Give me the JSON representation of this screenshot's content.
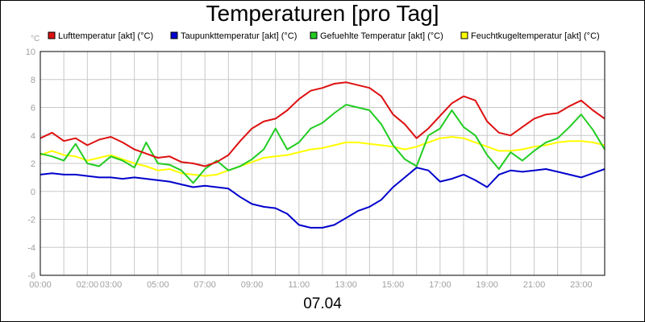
{
  "chart_data": {
    "type": "line",
    "title": "Temperaturen [pro Tag]",
    "date_label": "07.04",
    "y_unit": "°C",
    "ylim": [
      -6,
      10
    ],
    "y_ticks": [
      "-6",
      "-4",
      "-2",
      "0",
      "2",
      "4",
      "6",
      "8",
      "10"
    ],
    "y_tick_values": [
      -6,
      -4,
      -2,
      0,
      2,
      4,
      6,
      8,
      10
    ],
    "x_range_hours": [
      0,
      24
    ],
    "x_ticks": [
      {
        "label": "00:00",
        "hour": 0
      },
      {
        "label": "02:00",
        "hour": 2
      },
      {
        "label": "03:00",
        "hour": 3
      },
      {
        "label": "05:00",
        "hour": 5
      },
      {
        "label": "07:00",
        "hour": 7
      },
      {
        "label": "09:00",
        "hour": 9
      },
      {
        "label": "11:00",
        "hour": 11
      },
      {
        "label": "13:00",
        "hour": 13
      },
      {
        "label": "15:00",
        "hour": 15
      },
      {
        "label": "17:00",
        "hour": 17
      },
      {
        "label": "19:00",
        "hour": 19
      },
      {
        "label": "21:00",
        "hour": 21
      },
      {
        "label": "23:00",
        "hour": 23
      }
    ],
    "grid": true,
    "legend_position": "top",
    "series": [
      {
        "name": "Lufttemperatur [akt] (°C)",
        "color": "#dd1111",
        "x": [
          0,
          0.5,
          1,
          1.5,
          2,
          2.5,
          3,
          3.5,
          4,
          4.5,
          5,
          5.5,
          6,
          6.5,
          7,
          7.5,
          8,
          8.5,
          9,
          9.5,
          10,
          10.5,
          11,
          11.5,
          12,
          12.5,
          13,
          13.5,
          14,
          14.5,
          15,
          15.5,
          16,
          16.5,
          17,
          17.5,
          18,
          18.5,
          19,
          19.5,
          20,
          20.5,
          21,
          21.5,
          22,
          22.5,
          23,
          23.5,
          24
        ],
        "values": [
          3.8,
          4.2,
          3.6,
          3.8,
          3.3,
          3.7,
          3.9,
          3.5,
          3.0,
          2.7,
          2.4,
          2.5,
          2.1,
          2.0,
          1.8,
          2.1,
          2.6,
          3.6,
          4.5,
          5.0,
          5.2,
          5.8,
          6.6,
          7.2,
          7.4,
          7.7,
          7.8,
          7.6,
          7.4,
          6.8,
          5.5,
          4.8,
          3.8,
          4.5,
          5.4,
          6.3,
          6.8,
          6.5,
          5.0,
          4.2,
          4.0,
          4.6,
          5.2,
          5.5,
          5.6,
          6.1,
          6.5,
          5.8,
          5.2
        ]
      },
      {
        "name": "Taupunkttemperatur [akt] (°C)",
        "color": "#0000cc",
        "x": [
          0,
          0.5,
          1,
          1.5,
          2,
          2.5,
          3,
          3.5,
          4,
          4.5,
          5,
          5.5,
          6,
          6.5,
          7,
          7.5,
          8,
          8.5,
          9,
          9.5,
          10,
          10.5,
          11,
          11.5,
          12,
          12.5,
          13,
          13.5,
          14,
          14.5,
          15,
          15.5,
          16,
          16.5,
          17,
          17.5,
          18,
          18.5,
          19,
          19.5,
          20,
          20.5,
          21,
          21.5,
          22,
          22.5,
          23,
          23.5,
          24
        ],
        "values": [
          1.2,
          1.3,
          1.2,
          1.2,
          1.1,
          1.0,
          1.0,
          0.9,
          1.0,
          0.9,
          0.8,
          0.7,
          0.5,
          0.3,
          0.4,
          0.3,
          0.2,
          -0.4,
          -0.9,
          -1.1,
          -1.2,
          -1.6,
          -2.4,
          -2.6,
          -2.6,
          -2.4,
          -1.9,
          -1.4,
          -1.1,
          -0.6,
          0.3,
          1.0,
          1.7,
          1.5,
          0.7,
          0.9,
          1.2,
          0.8,
          0.3,
          1.2,
          1.5,
          1.4,
          1.5,
          1.6,
          1.4,
          1.2,
          1.0,
          1.3,
          1.6
        ]
      },
      {
        "name": "Gefuehlte Temperatur [akt] (°C)",
        "color": "#22cc22",
        "x": [
          0,
          0.5,
          1,
          1.5,
          2,
          2.5,
          3,
          3.5,
          4,
          4.5,
          5,
          5.5,
          6,
          6.5,
          7,
          7.5,
          8,
          8.5,
          9,
          9.5,
          10,
          10.5,
          11,
          11.5,
          12,
          12.5,
          13,
          13.5,
          14,
          14.5,
          15,
          15.5,
          16,
          16.5,
          17,
          17.5,
          18,
          18.5,
          19,
          19.5,
          20,
          20.5,
          21,
          21.5,
          22,
          22.5,
          23,
          23.5,
          24
        ],
        "values": [
          2.7,
          2.5,
          2.2,
          3.4,
          2.0,
          1.8,
          2.5,
          2.2,
          1.7,
          3.5,
          2.0,
          1.9,
          1.5,
          0.6,
          1.6,
          2.2,
          1.5,
          1.8,
          2.3,
          3.0,
          4.5,
          3.0,
          3.5,
          4.5,
          4.9,
          5.6,
          6.2,
          6.0,
          5.8,
          4.8,
          3.3,
          2.3,
          1.8,
          4.0,
          4.5,
          5.8,
          4.6,
          4.0,
          2.6,
          1.6,
          2.8,
          2.2,
          2.9,
          3.5,
          3.8,
          4.6,
          5.5,
          4.4,
          3.0
        ]
      },
      {
        "name": "Feuchtkugeltemperatur [akt] (°C)",
        "color": "#ffff00",
        "x": [
          0,
          0.5,
          1,
          1.5,
          2,
          2.5,
          3,
          3.5,
          4,
          4.5,
          5,
          5.5,
          6,
          6.5,
          7,
          7.5,
          8,
          8.5,
          9,
          9.5,
          10,
          10.5,
          11,
          11.5,
          12,
          12.5,
          13,
          13.5,
          14,
          14.5,
          15,
          15.5,
          16,
          16.5,
          17,
          17.5,
          18,
          18.5,
          19,
          19.5,
          20,
          20.5,
          21,
          21.5,
          22,
          22.5,
          23,
          23.5,
          24
        ],
        "values": [
          2.6,
          2.9,
          2.6,
          2.5,
          2.2,
          2.4,
          2.6,
          2.3,
          2.0,
          1.8,
          1.5,
          1.6,
          1.3,
          1.2,
          1.1,
          1.2,
          1.5,
          1.8,
          2.1,
          2.4,
          2.5,
          2.6,
          2.8,
          3.0,
          3.1,
          3.3,
          3.5,
          3.5,
          3.4,
          3.3,
          3.2,
          3.0,
          3.2,
          3.5,
          3.8,
          3.9,
          3.8,
          3.5,
          3.2,
          2.9,
          2.9,
          3.0,
          3.2,
          3.3,
          3.5,
          3.6,
          3.6,
          3.5,
          3.3
        ]
      }
    ]
  }
}
